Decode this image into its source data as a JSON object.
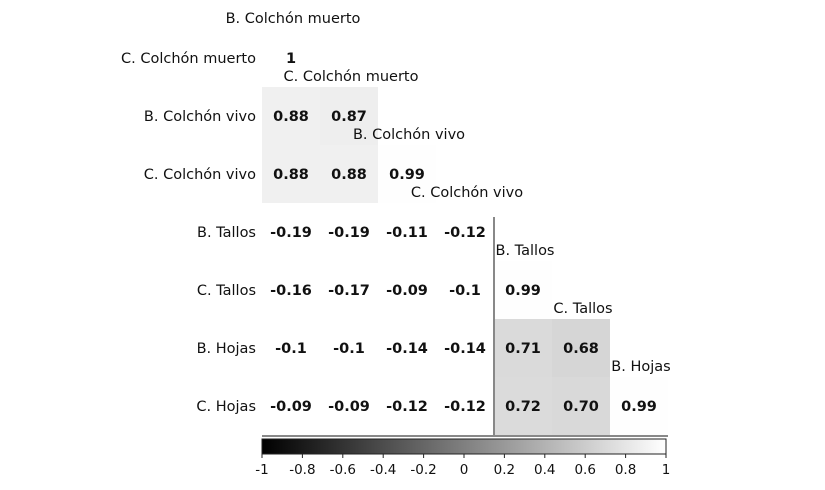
{
  "chart_data": {
    "type": "heatmap",
    "title": "",
    "xlabel": "",
    "ylabel": "",
    "variables": [
      "C. Colchón muerto",
      "B. Colchón vivo",
      "C. Colchón vivo",
      "B. Tallos",
      "C. Tallos",
      "B. Hojas",
      "C. Hojas"
    ],
    "diagonal_labels": [
      "B. Colchón muerto",
      "C. Colchón muerto",
      "B. Colchón vivo",
      "C. Colchón vivo",
      "B. Tallos",
      "C. Tallos",
      "B. Hojas"
    ],
    "matrix": [
      [
        "1"
      ],
      [
        "0.88",
        "0.87"
      ],
      [
        "0.88",
        "0.88",
        "0.99"
      ],
      [
        "-0.19",
        "-0.19",
        "-0.11",
        "-0.12"
      ],
      [
        "-0.16",
        "-0.17",
        "-0.09",
        "-0.1",
        "0.99"
      ],
      [
        "-0.1",
        "-0.1",
        "-0.14",
        "-0.14",
        "0.71",
        "0.68"
      ],
      [
        "-0.09",
        "-0.09",
        "-0.12",
        "-0.12",
        "0.72",
        "0.70",
        "0.99"
      ]
    ],
    "shaded_blocks": [
      {
        "rows": [
          0,
          2
        ],
        "cols": [
          0,
          2
        ]
      },
      {
        "rows": [
          4,
          6
        ],
        "cols": [
          4,
          6
        ]
      }
    ],
    "colorbar": {
      "range": [
        -1,
        1
      ],
      "ticks": [
        "-1",
        "-0.8",
        "-0.6",
        "-0.4",
        "-0.2",
        "0",
        "0.2",
        "0.4",
        "0.6",
        "0.8",
        "1"
      ],
      "low_color": "#000000",
      "high_color": "#ffffff"
    }
  }
}
